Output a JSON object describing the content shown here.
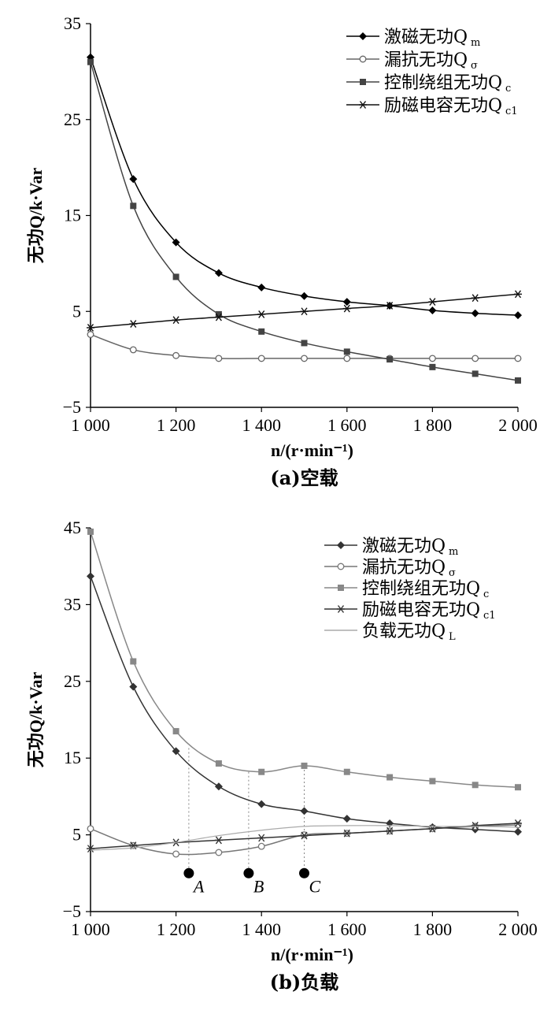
{
  "chart_data": [
    {
      "type": "line",
      "caption": "(a)空载",
      "xlabel": "n/(r·min⁻¹)",
      "ylabel": "无功Q/k·Var",
      "xlim": [
        1000,
        2000
      ],
      "ylim": [
        -5,
        35
      ],
      "xticks": [
        1000,
        1200,
        1400,
        1600,
        1800,
        2000
      ],
      "xtick_labels": [
        "1 000",
        "1 200",
        "1 400",
        "1 600",
        "1 800",
        "2 000"
      ],
      "yticks": [
        -5,
        5,
        15,
        25,
        35
      ],
      "ytick_labels": [
        "−5",
        "5",
        "15",
        "25",
        "35"
      ],
      "legend_position": "top-right",
      "x": [
        1000,
        1100,
        1200,
        1300,
        1400,
        1500,
        1600,
        1700,
        1800,
        1900,
        2000
      ],
      "series": [
        {
          "name": "激磁无功Q",
          "sub": "m",
          "marker": "diamond",
          "color": "#000000",
          "values": [
            31.5,
            18.8,
            12.2,
            9.0,
            7.5,
            6.6,
            6.0,
            5.6,
            5.1,
            4.8,
            4.6
          ]
        },
        {
          "name": "漏抗无功Q",
          "sub": "σ",
          "marker": "circle",
          "color": "#666666",
          "values": [
            2.6,
            1.0,
            0.4,
            0.1,
            0.1,
            0.1,
            0.1,
            0.1,
            0.1,
            0.1,
            0.1
          ]
        },
        {
          "name": "控制绕组无功Q",
          "sub": "c",
          "marker": "square",
          "color": "#444444",
          "values": [
            31.0,
            16.0,
            8.6,
            4.7,
            2.9,
            1.7,
            0.8,
            0.0,
            -0.8,
            -1.5,
            -2.2
          ]
        },
        {
          "name": "励磁电容无功Q",
          "sub": "c1",
          "marker": "star",
          "color": "#111111",
          "values": [
            3.3,
            3.7,
            4.1,
            4.4,
            4.7,
            5.0,
            5.3,
            5.6,
            6.0,
            6.4,
            6.8
          ]
        }
      ]
    },
    {
      "type": "line",
      "caption": "(b)负载",
      "xlabel": "n/(r·min⁻¹)",
      "ylabel": "无功Q/k·Var",
      "xlim": [
        1000,
        2000
      ],
      "ylim": [
        -5,
        45
      ],
      "xticks": [
        1000,
        1200,
        1400,
        1600,
        1800,
        2000
      ],
      "xtick_labels": [
        "1 000",
        "1 200",
        "1 400",
        "1 600",
        "1 800",
        "2 000"
      ],
      "yticks": [
        -5,
        5,
        15,
        25,
        35,
        45
      ],
      "ytick_labels": [
        "−5",
        "5",
        "15",
        "25",
        "35",
        "45"
      ],
      "legend_position": "top-right",
      "x": [
        1000,
        1100,
        1200,
        1300,
        1400,
        1500,
        1600,
        1700,
        1800,
        1900,
        2000
      ],
      "series": [
        {
          "name": "激磁无功Q",
          "sub": "m",
          "marker": "diamond",
          "color": "#333333",
          "values": [
            38.7,
            24.3,
            15.9,
            11.3,
            9.0,
            8.1,
            7.1,
            6.5,
            6.0,
            5.7,
            5.4
          ]
        },
        {
          "name": "漏抗无功Q",
          "sub": "σ",
          "marker": "circle",
          "color": "#777777",
          "values": [
            5.8,
            3.6,
            2.5,
            2.7,
            3.5,
            5.0,
            5.2,
            5.5,
            5.8,
            6.1,
            6.3
          ]
        },
        {
          "name": "控制绕组无功Q",
          "sub": "c",
          "marker": "square",
          "color": "#888888",
          "values": [
            44.5,
            27.6,
            18.5,
            14.3,
            13.2,
            14.0,
            13.2,
            12.5,
            12.0,
            11.5,
            11.2
          ]
        },
        {
          "name": "励磁电容无功Q",
          "sub": "c1",
          "marker": "star",
          "color": "#333333",
          "values": [
            3.2,
            3.6,
            4.0,
            4.3,
            4.6,
            4.9,
            5.2,
            5.5,
            5.8,
            6.2,
            6.5
          ]
        },
        {
          "name": "负载无功Q",
          "sub": "L",
          "marker": "none",
          "color": "#aaaaaa",
          "values": [
            3.0,
            3.3,
            4.0,
            4.9,
            5.6,
            6.1,
            6.2,
            6.2,
            6.1,
            6.1,
            6.0
          ]
        }
      ],
      "annotations": [
        {
          "label": "A",
          "x": 1230,
          "y": 0,
          "top": 16.3
        },
        {
          "label": "B",
          "x": 1370,
          "y": 0,
          "top": 13.2
        },
        {
          "label": "C",
          "x": 1500,
          "y": 0,
          "top": 14.0
        }
      ]
    }
  ]
}
